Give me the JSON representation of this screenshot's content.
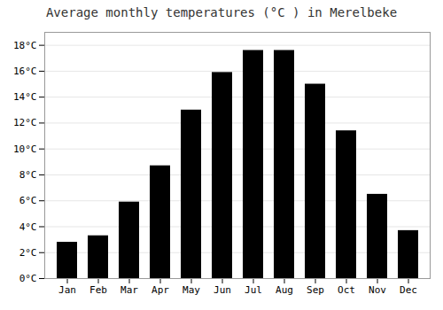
{
  "chart_data": {
    "type": "bar",
    "title": "Average monthly temperatures (°C ) in Merelbeke",
    "categories": [
      "Jan",
      "Feb",
      "Mar",
      "Apr",
      "May",
      "Jun",
      "Jul",
      "Aug",
      "Sep",
      "Oct",
      "Nov",
      "Dec"
    ],
    "values": [
      2.8,
      3.3,
      5.9,
      8.7,
      13.0,
      15.9,
      17.6,
      17.6,
      15.0,
      11.4,
      6.5,
      3.7
    ],
    "ylim": [
      0,
      19
    ],
    "yticks": [
      {
        "value": 0,
        "label": "0°C"
      },
      {
        "value": 2,
        "label": "2°C"
      },
      {
        "value": 4,
        "label": "4°C"
      },
      {
        "value": 6,
        "label": "6°C"
      },
      {
        "value": 8,
        "label": "8°C"
      },
      {
        "value": 10,
        "label": "10°C"
      },
      {
        "value": 12,
        "label": "12°C"
      },
      {
        "value": 14,
        "label": "14°C"
      },
      {
        "value": 16,
        "label": "16°C"
      },
      {
        "value": 18,
        "label": "18°C"
      }
    ],
    "grid": true
  }
}
